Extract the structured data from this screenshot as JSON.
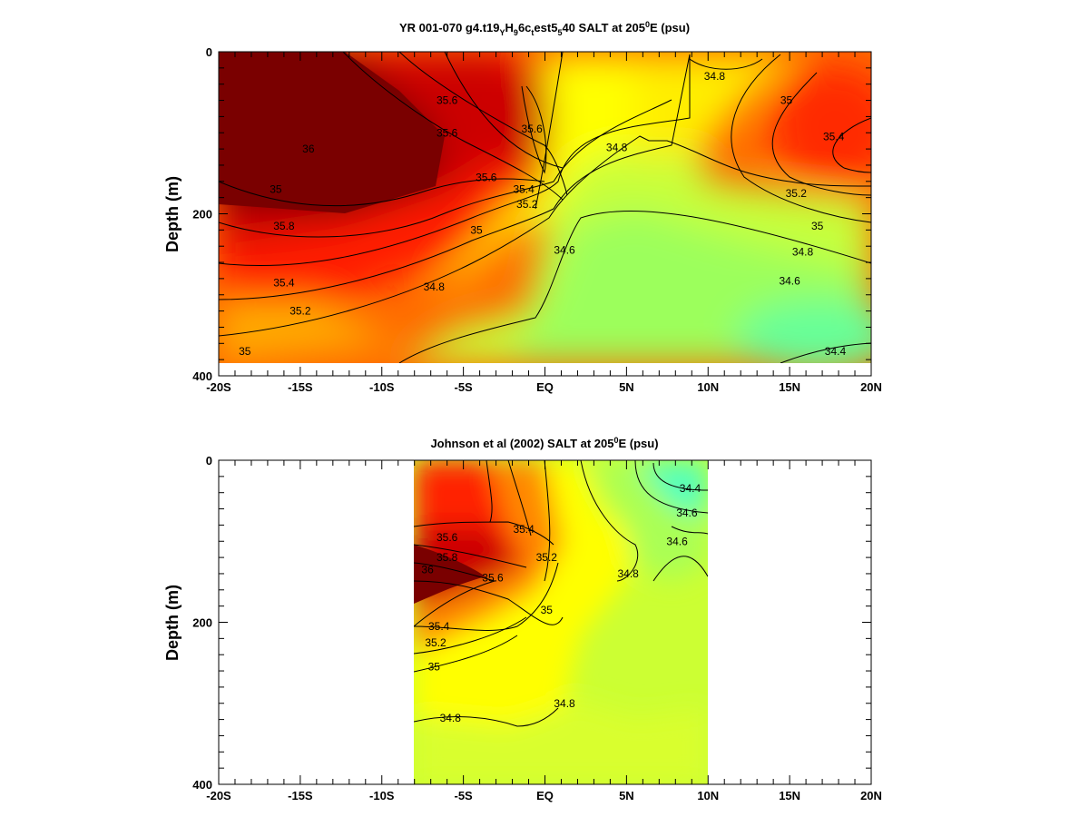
{
  "chart_data": [
    {
      "type": "heatmap",
      "title": {
        "prefix": "YR 001-070 g4.t19",
        "sub1": "Y",
        "mid1": "H",
        "sub2": "9",
        "mid2": "6c",
        "sub3": "t",
        "mid3": "est5",
        "sub4": "5",
        "mid4": "40 SALT at 205",
        "sup": "0",
        "suffix": "E (psu)"
      },
      "ylabel": "Depth (m)",
      "xlabel": "",
      "x_ticks": [
        {
          "value": -20,
          "label": "-20S"
        },
        {
          "value": -15,
          "label": "-15S"
        },
        {
          "value": -10,
          "label": "-10S"
        },
        {
          "value": -5,
          "label": "-5S"
        },
        {
          "value": 0,
          "label": "EQ"
        },
        {
          "value": 5,
          "label": "5N"
        },
        {
          "value": 10,
          "label": "10N"
        },
        {
          "value": 15,
          "label": "15N"
        },
        {
          "value": 20,
          "label": "20N"
        }
      ],
      "y_ticks": [
        {
          "value": 0,
          "label": "0"
        },
        {
          "value": 200,
          "label": "200"
        },
        {
          "value": 400,
          "label": "400"
        }
      ],
      "xlim": [
        -20,
        20
      ],
      "ylim": [
        0,
        400
      ],
      "y_inverted": true,
      "data_extent": {
        "x": [
          -20,
          20
        ],
        "y": [
          0,
          385
        ]
      },
      "contour_labels": [
        {
          "x": -14.5,
          "y": 120,
          "text": "36"
        },
        {
          "x": -6,
          "y": 60,
          "text": "35.6"
        },
        {
          "x": -6,
          "y": 100,
          "text": "35.6"
        },
        {
          "x": -0.8,
          "y": 95,
          "text": "35.6"
        },
        {
          "x": -3.6,
          "y": 155,
          "text": "35.6"
        },
        {
          "x": -1.3,
          "y": 170,
          "text": "35.4"
        },
        {
          "x": -1.1,
          "y": 188,
          "text": "35.2"
        },
        {
          "x": -4.2,
          "y": 220,
          "text": "35"
        },
        {
          "x": 4.4,
          "y": 118,
          "text": "34.8"
        },
        {
          "x": 1.2,
          "y": 245,
          "text": "34.6"
        },
        {
          "x": -6.8,
          "y": 290,
          "text": "34.8"
        },
        {
          "x": 10.4,
          "y": 30,
          "text": "34.8"
        },
        {
          "x": 14.8,
          "y": 60,
          "text": "35"
        },
        {
          "x": 17.7,
          "y": 105,
          "text": "35.4"
        },
        {
          "x": 15.4,
          "y": 175,
          "text": "35.2"
        },
        {
          "x": 16.7,
          "y": 215,
          "text": "35"
        },
        {
          "x": 15.8,
          "y": 247,
          "text": "34.8"
        },
        {
          "x": 15,
          "y": 283,
          "text": "34.6"
        },
        {
          "x": 17.8,
          "y": 370,
          "text": "34.4"
        },
        {
          "x": -16.5,
          "y": 170,
          "text": "35"
        },
        {
          "x": -16,
          "y": 215,
          "text": "35.8"
        },
        {
          "x": -16,
          "y": 285,
          "text": "35.4"
        },
        {
          "x": -15,
          "y": 320,
          "text": "35.2"
        },
        {
          "x": -18.4,
          "y": 370,
          "text": "35"
        }
      ]
    },
    {
      "type": "heatmap",
      "title": {
        "prefix": "Johnson et al (2002) SALT at 205",
        "sup": "0",
        "suffix": "E (psu)"
      },
      "ylabel": "Depth (m)",
      "xlabel": "",
      "x_ticks": [
        {
          "value": -20,
          "label": "-20S"
        },
        {
          "value": -15,
          "label": "-15S"
        },
        {
          "value": -10,
          "label": "-10S"
        },
        {
          "value": -5,
          "label": "-5S"
        },
        {
          "value": 0,
          "label": "EQ"
        },
        {
          "value": 5,
          "label": "5N"
        },
        {
          "value": 10,
          "label": "10N"
        },
        {
          "value": 15,
          "label": "15N"
        },
        {
          "value": 20,
          "label": "20N"
        }
      ],
      "y_ticks": [
        {
          "value": 0,
          "label": "0"
        },
        {
          "value": 200,
          "label": "200"
        },
        {
          "value": 400,
          "label": "400"
        }
      ],
      "xlim": [
        -20,
        20
      ],
      "ylim": [
        0,
        400
      ],
      "y_inverted": true,
      "data_extent": {
        "x": [
          -8,
          10
        ],
        "y": [
          0,
          400
        ]
      },
      "contour_labels": [
        {
          "x": 8.9,
          "y": 35,
          "text": "34.4"
        },
        {
          "x": 8.7,
          "y": 65,
          "text": "34.6"
        },
        {
          "x": 8.1,
          "y": 100,
          "text": "34.6"
        },
        {
          "x": 5.1,
          "y": 140,
          "text": "34.8"
        },
        {
          "x": -1.3,
          "y": 85,
          "text": "35.4"
        },
        {
          "x": 0.1,
          "y": 120,
          "text": "35.2"
        },
        {
          "x": -6,
          "y": 95,
          "text": "35.6"
        },
        {
          "x": -6,
          "y": 120,
          "text": "35.8"
        },
        {
          "x": -7.2,
          "y": 135,
          "text": "36"
        },
        {
          "x": -3.2,
          "y": 145,
          "text": "35.6"
        },
        {
          "x": -6.5,
          "y": 205,
          "text": "35.4"
        },
        {
          "x": -6.7,
          "y": 225,
          "text": "35.2"
        },
        {
          "x": -6.8,
          "y": 255,
          "text": "35"
        },
        {
          "x": 0.1,
          "y": 185,
          "text": "35"
        },
        {
          "x": -5.8,
          "y": 318,
          "text": "34.8"
        },
        {
          "x": 1.2,
          "y": 300,
          "text": "34.8"
        }
      ]
    }
  ]
}
